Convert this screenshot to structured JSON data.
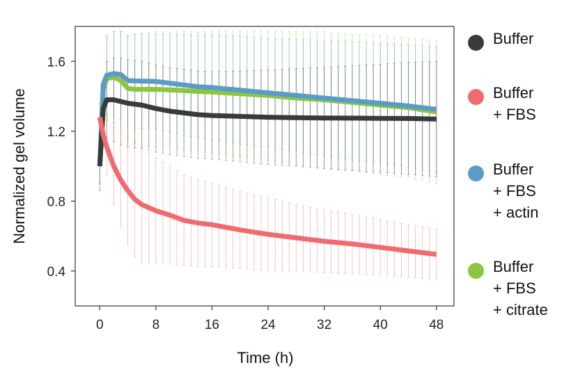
{
  "chart_data": {
    "type": "line",
    "title": "",
    "xlabel": "Time (h)",
    "ylabel": "Normalized gel volume",
    "xlim": [
      -3.5,
      50.5
    ],
    "ylim": [
      0.2,
      1.8
    ],
    "xticks": [
      0,
      8,
      16,
      24,
      32,
      40,
      48
    ],
    "yticks": [
      0.4,
      0.8,
      1.2,
      1.6
    ],
    "xtick_labels": [
      "0",
      "8",
      "16",
      "24",
      "32",
      "40",
      "48"
    ],
    "ytick_labels": [
      "0.4",
      "0.8",
      "1.2",
      "1.6"
    ],
    "grid": false,
    "legend_position": "right",
    "x": [
      0,
      0.5,
      1,
      2,
      3,
      4,
      5,
      6,
      8,
      10,
      12,
      14,
      16,
      20,
      24,
      28,
      32,
      36,
      40,
      44,
      48
    ],
    "series": [
      {
        "name": "Buffer",
        "legend_lines": [
          "Buffer"
        ],
        "color": "#3a3a3a",
        "values": [
          1.0,
          1.33,
          1.38,
          1.38,
          1.37,
          1.36,
          1.355,
          1.35,
          1.33,
          1.315,
          1.305,
          1.295,
          1.29,
          1.285,
          1.28,
          1.278,
          1.276,
          1.275,
          1.274,
          1.273,
          1.27
        ],
        "error": [
          0.14,
          0.19,
          0.22,
          0.24,
          0.25,
          0.25,
          0.25,
          0.25,
          0.25,
          0.25,
          0.25,
          0.25,
          0.25,
          0.26,
          0.27,
          0.28,
          0.29,
          0.3,
          0.31,
          0.32,
          0.33
        ]
      },
      {
        "name": "Buffer + FBS",
        "legend_lines": [
          "Buffer",
          "+ FBS"
        ],
        "color": "#ef6b6f",
        "values": [
          1.28,
          1.18,
          1.11,
          1.0,
          0.92,
          0.86,
          0.81,
          0.78,
          0.745,
          0.72,
          0.69,
          0.675,
          0.665,
          0.635,
          0.61,
          0.59,
          0.57,
          0.555,
          0.535,
          0.515,
          0.495
        ],
        "error": [
          0.08,
          0.12,
          0.16,
          0.22,
          0.27,
          0.31,
          0.33,
          0.33,
          0.3,
          0.28,
          0.26,
          0.25,
          0.24,
          0.22,
          0.21,
          0.19,
          0.18,
          0.17,
          0.16,
          0.15,
          0.145
        ]
      },
      {
        "name": "Buffer + FBS + actin",
        "legend_lines": [
          "Buffer",
          "+ FBS",
          "+ actin"
        ],
        "color": "#5b9bc8",
        "values": [
          1.0,
          1.47,
          1.52,
          1.53,
          1.525,
          1.49,
          1.488,
          1.487,
          1.485,
          1.475,
          1.465,
          1.455,
          1.45,
          1.435,
          1.42,
          1.405,
          1.39,
          1.375,
          1.36,
          1.345,
          1.325
        ],
        "error": [
          0.1,
          0.2,
          0.23,
          0.24,
          0.25,
          0.26,
          0.27,
          0.27,
          0.27,
          0.28,
          0.29,
          0.29,
          0.3,
          0.31,
          0.31,
          0.32,
          0.33,
          0.34,
          0.34,
          0.35,
          0.36
        ]
      },
      {
        "name": "Buffer + FBS + citrate",
        "legend_lines": [
          "Buffer",
          "+ FBS",
          "+ citrate"
        ],
        "color": "#8cc63f",
        "values": [
          1.0,
          1.44,
          1.5,
          1.51,
          1.49,
          1.445,
          1.44,
          1.44,
          1.44,
          1.437,
          1.433,
          1.428,
          1.425,
          1.415,
          1.405,
          1.39,
          1.38,
          1.365,
          1.35,
          1.335,
          1.31
        ],
        "error": [
          0.1,
          0.2,
          0.24,
          0.26,
          0.28,
          0.3,
          0.31,
          0.32,
          0.33,
          0.33,
          0.34,
          0.34,
          0.35,
          0.36,
          0.37,
          0.38,
          0.39,
          0.39,
          0.4,
          0.4,
          0.41
        ]
      }
    ]
  }
}
